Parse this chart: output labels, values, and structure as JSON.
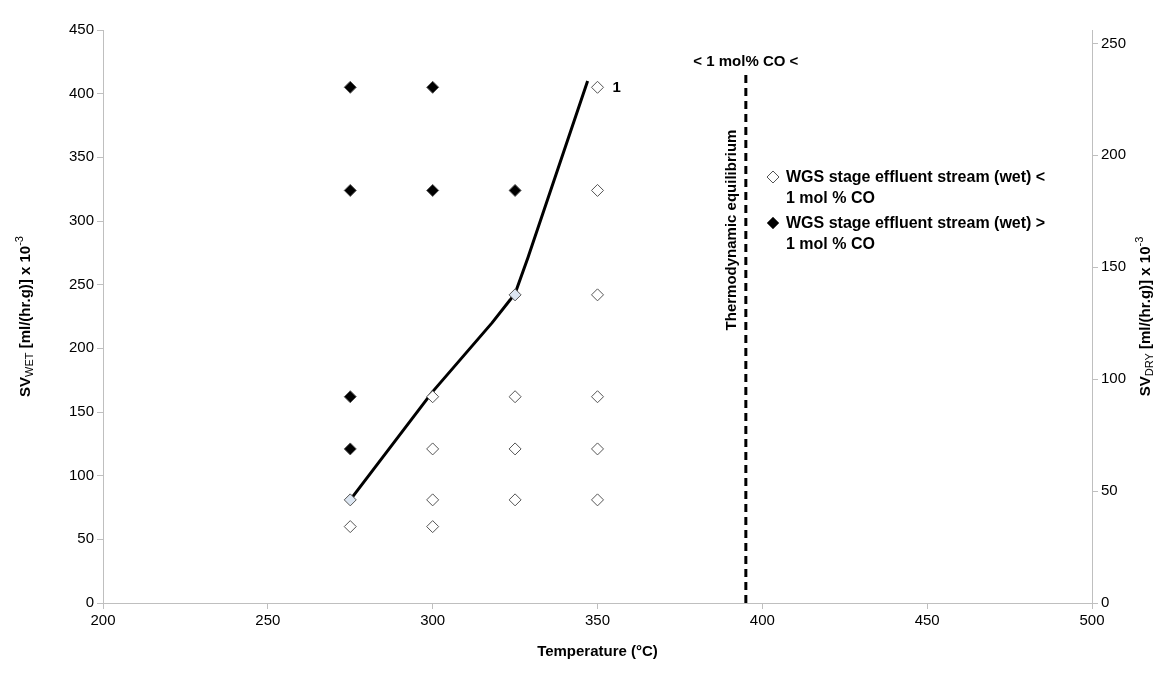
{
  "chart_data": {
    "type": "scatter",
    "xlabel": "Temperature (°C)",
    "ylabel": "SV$_{WET}$ [ml/(hr.g)] x 10$^{-3}$",
    "y2label": "SV$_{DRY}$ [ml/(hr.g)] x 10$^{-3}$",
    "xlim": [
      200,
      500
    ],
    "xticks": [
      200,
      250,
      300,
      350,
      400,
      450,
      500
    ],
    "ylim": [
      0,
      450
    ],
    "yticks": [
      0,
      50,
      100,
      150,
      200,
      250,
      300,
      350,
      400,
      450
    ],
    "y2lim": [
      0,
      256
    ],
    "y2ticks": [
      0,
      50,
      100,
      150,
      200,
      250
    ],
    "grid": false,
    "legend": "right",
    "marker": "diamond",
    "series": [
      {
        "name": "WGS stage effluent stream (wet) < 1 mol % CO",
        "color": "#ffffff",
        "x": [
          350,
          350,
          350,
          300,
          325,
          350,
          300,
          325,
          350,
          300,
          325,
          350,
          275,
          300
        ],
        "values": [
          405,
          324,
          242,
          162,
          162,
          162,
          121,
          121,
          121,
          81,
          81,
          81,
          60,
          60
        ]
      },
      {
        "name": "WGS stage effluent stream (wet) > 1 mol % CO",
        "color": "#000000",
        "x": [
          275,
          300,
          275,
          300,
          325,
          275,
          275
        ],
        "values": [
          405,
          405,
          324,
          324,
          324,
          162,
          121
        ]
      },
      {
        "color": "#dce6f2",
        "x": [
          275,
          325
        ],
        "values": [
          81,
          242
        ]
      },
      {
        "type": "line",
        "color": "#000000",
        "marker": "none",
        "line_style": "solid",
        "x": [
          275,
          300,
          318,
          325,
          329,
          347
        ],
        "values": [
          81,
          166,
          220,
          243,
          272,
          410
        ]
      }
    ],
    "ref_lines": [
      {
        "axis": "x",
        "value": 395,
        "label": "Thermodynamic equilibrium",
        "color": "#000000",
        "line_style": "dashed"
      }
    ],
    "annotations": [
      "< 1 mol% CO <",
      {
        "text": "1",
        "x": 350,
        "y": 405
      }
    ]
  }
}
